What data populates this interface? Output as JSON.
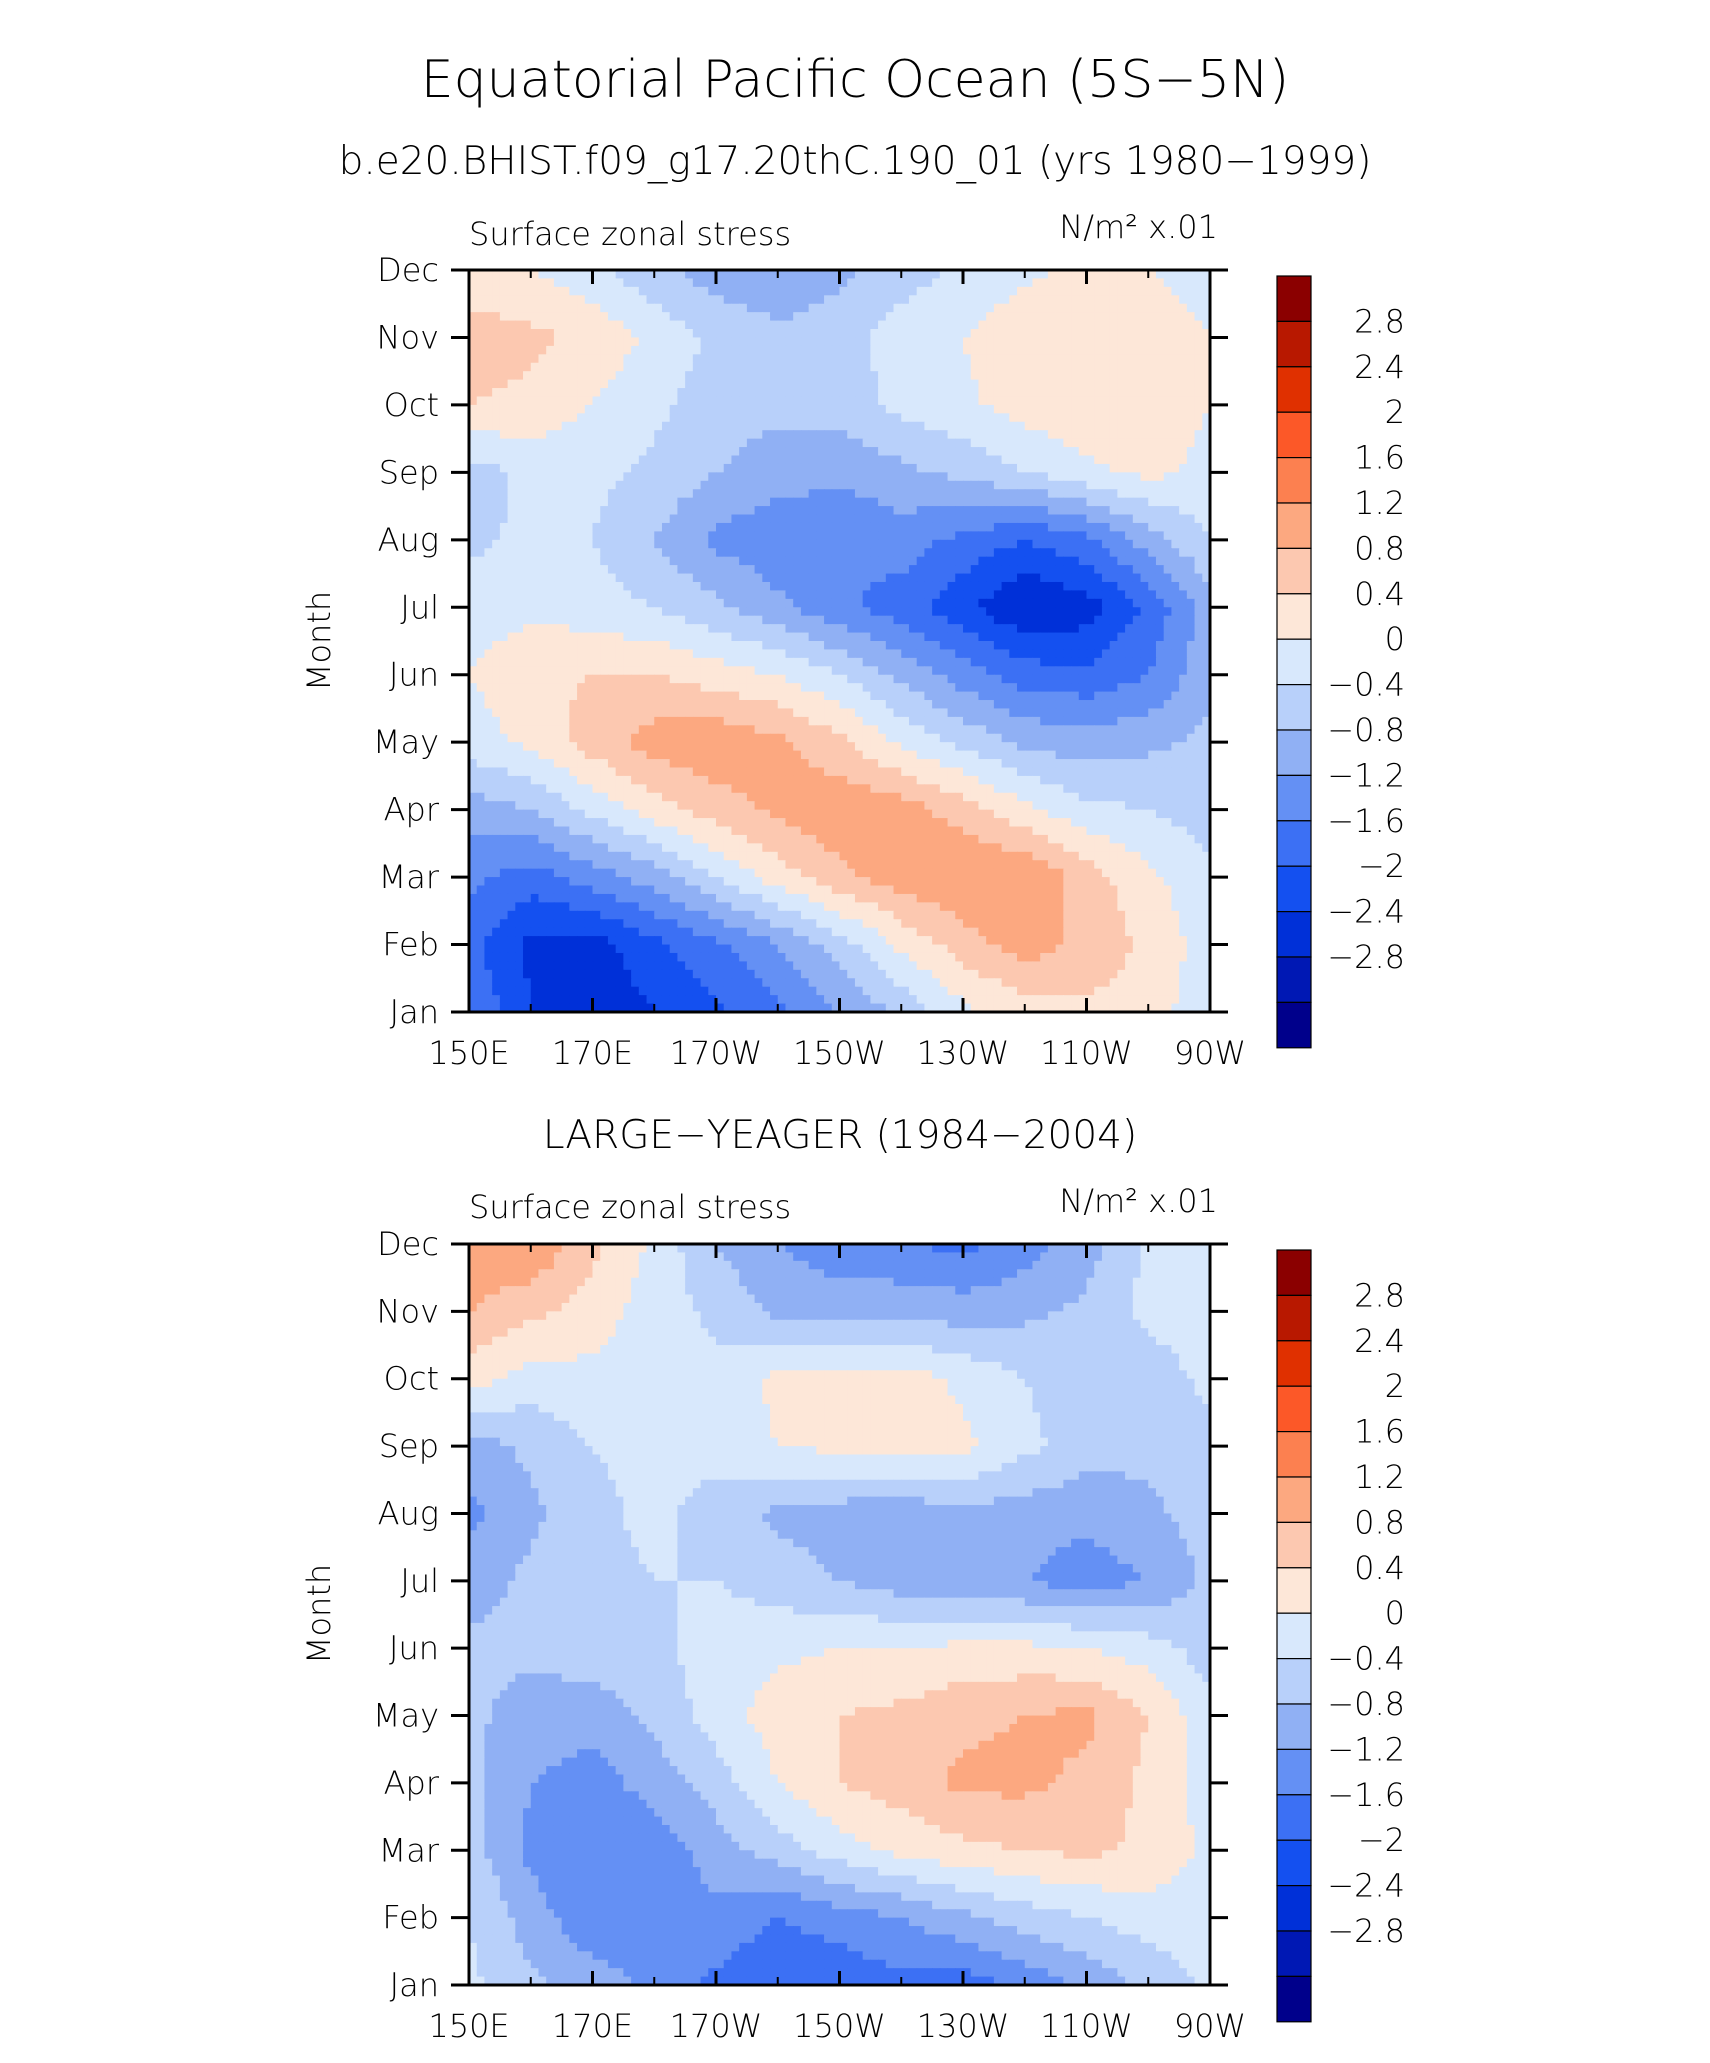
{
  "figure": {
    "title": "Equatorial Pacific Ocean (5S−5N)",
    "subtitle": "b.e20.BHIST.f09_g17.20thC.190_01 (yrs 1980−1999)"
  },
  "palette": [
    "#00008b",
    "#0018b4",
    "#0030d8",
    "#1450f0",
    "#3c70f4",
    "#6490f4",
    "#90b0f4",
    "#b8d0fa",
    "#d8e8fc",
    "#fde7d8",
    "#fcc8b0",
    "#fca880",
    "#fc8050",
    "#fc5828",
    "#e03000",
    "#b81800",
    "#8b0000"
  ],
  "colorbar": {
    "levels": [
      "2.8",
      "2.4",
      "2",
      "1.6",
      "1.2",
      "0.8",
      "0.4",
      "0",
      "−0.4",
      "−0.8",
      "−1.2",
      "−1.6",
      "−2",
      "−2.4",
      "−2.8"
    ]
  },
  "chart_data": [
    {
      "type": "heatmap",
      "title": "",
      "left_label": "Surface zonal stress",
      "right_label": "N/m² x.01",
      "ylabel": "Month",
      "xlabel": "",
      "x_ticks": [
        "150E",
        "170E",
        "170W",
        "150W",
        "130W",
        "110W",
        "90W"
      ],
      "y_ticks": [
        "Jan",
        "Feb",
        "Mar",
        "Apr",
        "May",
        "Jun",
        "Jul",
        "Aug",
        "Sep",
        "Oct",
        "Nov",
        "Dec"
      ],
      "x_lon": [
        150,
        160,
        170,
        180,
        190,
        200,
        210,
        220,
        230,
        240,
        250,
        260,
        270
      ],
      "z": [
        [
          -1.2,
          -2.0,
          -2.3,
          -2.0,
          -1.7,
          -1.3,
          -0.8,
          -0.3,
          0.3,
          0.6,
          0.7,
          0.6,
          0.1
        ],
        [
          -1.5,
          -2.1,
          -2.2,
          -1.7,
          -1.3,
          -0.8,
          -0.2,
          0.5,
          1.0,
          1.4,
          1.1,
          0.7,
          0.2
        ],
        [
          -1.1,
          -1.4,
          -1.0,
          -0.6,
          0.0,
          0.6,
          1.1,
          1.4,
          1.6,
          1.6,
          1.0,
          0.5,
          0.1
        ],
        [
          -0.6,
          -0.4,
          0.1,
          0.6,
          1.0,
          1.3,
          1.5,
          1.4,
          1.0,
          0.5,
          0.1,
          0.0,
          -0.2
        ],
        [
          0.2,
          0.5,
          1.0,
          1.4,
          1.5,
          1.3,
          0.9,
          0.3,
          -0.1,
          -0.5,
          -0.6,
          -0.5,
          -0.3
        ],
        [
          0.4,
          0.7,
          0.8,
          0.8,
          0.6,
          0.4,
          0.0,
          -0.5,
          -1.0,
          -1.4,
          -1.5,
          -1.2,
          -0.5
        ],
        [
          0.2,
          0.3,
          0.2,
          0.0,
          -0.3,
          -0.7,
          -1.1,
          -1.4,
          -1.9,
          -2.4,
          -2.2,
          -1.5,
          -0.6
        ],
        [
          -0.1,
          0.1,
          0.0,
          -0.4,
          -0.9,
          -1.1,
          -1.2,
          -1.0,
          -1.3,
          -1.6,
          -1.3,
          -0.6,
          0.0
        ],
        [
          -0.2,
          0.1,
          0.1,
          -0.1,
          -0.4,
          -0.6,
          -0.7,
          -0.5,
          -0.3,
          0.0,
          0.3,
          0.5,
          0.3
        ],
        [
          0.8,
          0.7,
          0.4,
          0.1,
          -0.2,
          -0.3,
          -0.2,
          0.1,
          0.3,
          0.6,
          0.7,
          0.6,
          0.4
        ],
        [
          1.0,
          0.9,
          0.7,
          0.3,
          -0.1,
          -0.3,
          -0.2,
          0.2,
          0.4,
          0.7,
          0.7,
          0.6,
          0.4
        ],
        [
          0.5,
          0.4,
          0.1,
          -0.3,
          -0.6,
          -0.7,
          -0.5,
          -0.2,
          0.1,
          0.3,
          0.5,
          0.4,
          0.2
        ]
      ]
    },
    {
      "type": "heatmap",
      "title": "LARGE−YEAGER (1984−2004)",
      "left_label": "Surface zonal stress",
      "right_label": "N/m² x.01",
      "ylabel": "Month",
      "xlabel": "",
      "x_ticks": [
        "150E",
        "170E",
        "170W",
        "150W",
        "130W",
        "110W",
        "90W"
      ],
      "y_ticks": [
        "Jan",
        "Feb",
        "Mar",
        "Apr",
        "May",
        "Jun",
        "Jul",
        "Aug",
        "Sep",
        "Oct",
        "Nov",
        "Dec"
      ],
      "x_lon": [
        150,
        160,
        170,
        180,
        190,
        200,
        210,
        220,
        230,
        240,
        250,
        260,
        270
      ],
      "z": [
        [
          0.1,
          -0.3,
          -0.6,
          -0.9,
          -1.3,
          -1.6,
          -1.5,
          -1.3,
          -1.4,
          -1.1,
          -0.7,
          -0.3,
          0.1
        ],
        [
          0.0,
          -0.6,
          -1.1,
          -1.0,
          -0.9,
          -1.2,
          -1.0,
          -0.8,
          -0.5,
          -0.2,
          0.0,
          0.2,
          0.2
        ],
        [
          -0.2,
          -0.9,
          -1.2,
          -1.1,
          -0.6,
          -0.2,
          0.2,
          0.5,
          0.7,
          0.8,
          0.9,
          0.7,
          0.3
        ],
        [
          -0.3,
          -0.8,
          -1.0,
          -0.6,
          -0.2,
          0.4,
          0.8,
          1.0,
          1.3,
          1.3,
          1.1,
          0.7,
          0.2
        ],
        [
          -0.3,
          -0.6,
          -0.6,
          -0.3,
          0.2,
          0.6,
          0.8,
          0.9,
          1.1,
          1.2,
          1.3,
          0.8,
          0.1
        ],
        [
          -0.3,
          -0.3,
          -0.2,
          -0.1,
          0.2,
          0.3,
          0.4,
          0.4,
          0.5,
          0.5,
          0.4,
          0.2,
          -0.2
        ],
        [
          -0.6,
          -0.3,
          -0.1,
          0.0,
          0.0,
          -0.2,
          -0.4,
          -0.6,
          -0.7,
          -0.8,
          -1.0,
          -0.8,
          -0.3
        ],
        [
          -0.9,
          -0.5,
          -0.1,
          0.1,
          -0.2,
          -0.5,
          -0.6,
          -0.7,
          -0.5,
          -0.6,
          -0.7,
          -0.5,
          -0.2
        ],
        [
          -0.6,
          -0.3,
          0.0,
          0.1,
          0.2,
          0.4,
          0.5,
          0.6,
          0.5,
          0.1,
          -0.2,
          -0.3,
          -0.1
        ],
        [
          0.6,
          0.2,
          0.3,
          0.2,
          0.1,
          0.5,
          0.6,
          0.6,
          0.3,
          0.0,
          -0.3,
          -0.2,
          0.1
        ],
        [
          1.2,
          0.9,
          0.6,
          0.2,
          -0.1,
          -0.5,
          -0.5,
          -0.5,
          -0.6,
          -0.5,
          -0.3,
          0.1,
          0.2
        ],
        [
          1.5,
          1.6,
          0.9,
          0.3,
          -0.4,
          -0.8,
          -1.1,
          -1.2,
          -1.3,
          -1.0,
          -0.6,
          0.1,
          0.1
        ]
      ]
    }
  ]
}
